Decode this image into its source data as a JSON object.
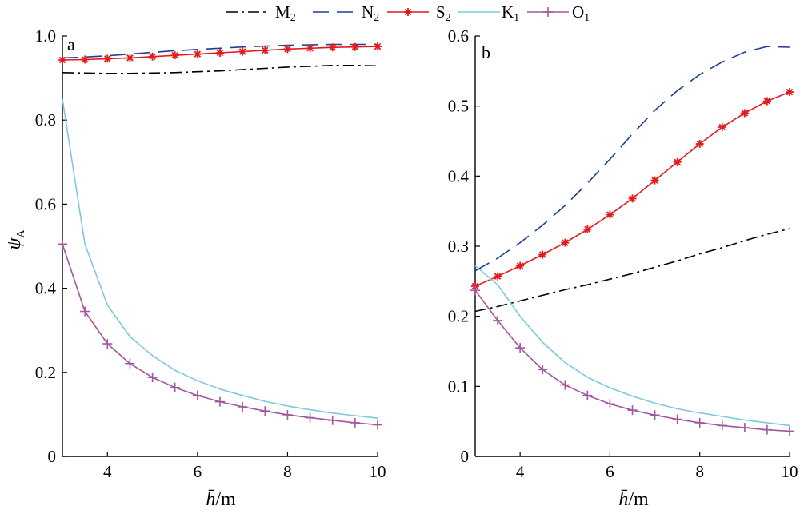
{
  "legend": {
    "items": [
      {
        "key": "M2",
        "base": "M",
        "sub": "2",
        "color": "#000000",
        "dash": "14 5 3 5",
        "marker": "none"
      },
      {
        "key": "N2",
        "base": "N",
        "sub": "2",
        "color": "#1f3f8f",
        "dash": "20 10",
        "marker": "none"
      },
      {
        "key": "S2",
        "base": "S",
        "sub": "2",
        "color": "#e31a1c",
        "dash": "",
        "marker": "asterisk"
      },
      {
        "key": "K1",
        "base": "K",
        "sub": "1",
        "color": "#7ec8dd",
        "dash": "",
        "marker": "none"
      },
      {
        "key": "O1",
        "base": "O",
        "sub": "1",
        "color": "#a2569e",
        "dash": "",
        "marker": "plus"
      }
    ]
  },
  "chart_data": [
    {
      "type": "line",
      "panel_label": "a",
      "ylabel": "ψA",
      "xlabel": "h̄/m",
      "xlim": [
        3,
        10
      ],
      "ylim": [
        0,
        1.0
      ],
      "xticks": [
        "4",
        "6",
        "8",
        "10"
      ],
      "yticks": [
        "0",
        "0.2",
        "0.4",
        "0.6",
        "0.8",
        "1.0"
      ],
      "x": [
        3,
        3.5,
        4,
        4.5,
        5,
        5.5,
        6,
        6.5,
        7,
        7.5,
        8,
        8.5,
        9,
        9.5,
        10
      ],
      "series": [
        {
          "name": "M2",
          "values": [
            0.913,
            0.912,
            0.911,
            0.911,
            0.912,
            0.913,
            0.915,
            0.917,
            0.92,
            0.923,
            0.926,
            0.928,
            0.93,
            0.93,
            0.929
          ]
        },
        {
          "name": "N2",
          "values": [
            0.948,
            0.95,
            0.953,
            0.957,
            0.961,
            0.965,
            0.968,
            0.971,
            0.974,
            0.976,
            0.978,
            0.979,
            0.98,
            0.98,
            0.98
          ]
        },
        {
          "name": "S2",
          "values": [
            0.943,
            0.944,
            0.946,
            0.948,
            0.951,
            0.954,
            0.957,
            0.96,
            0.963,
            0.966,
            0.969,
            0.971,
            0.973,
            0.974,
            0.975
          ]
        },
        {
          "name": "K1",
          "values": [
            0.85,
            0.505,
            0.36,
            0.285,
            0.24,
            0.205,
            0.18,
            0.16,
            0.145,
            0.131,
            0.12,
            0.111,
            0.103,
            0.097,
            0.091
          ]
        },
        {
          "name": "O1",
          "values": [
            0.505,
            0.345,
            0.268,
            0.221,
            0.188,
            0.164,
            0.145,
            0.13,
            0.118,
            0.108,
            0.099,
            0.092,
            0.086,
            0.08,
            0.075
          ]
        }
      ]
    },
    {
      "type": "line",
      "panel_label": "b",
      "ylabel": "",
      "xlabel": "h̄/m",
      "xlim": [
        3,
        10
      ],
      "ylim": [
        0,
        0.6
      ],
      "xticks": [
        "4",
        "6",
        "8",
        "10"
      ],
      "yticks": [
        "0",
        "0.1",
        "0.2",
        "0.3",
        "0.4",
        "0.5",
        "0.6"
      ],
      "x": [
        3,
        3.5,
        4,
        4.5,
        5,
        5.5,
        6,
        6.5,
        7,
        7.5,
        8,
        8.5,
        9,
        9.5,
        10
      ],
      "series": [
        {
          "name": "M2",
          "values": [
            0.207,
            0.214,
            0.222,
            0.23,
            0.238,
            0.245,
            0.253,
            0.261,
            0.27,
            0.279,
            0.289,
            0.298,
            0.308,
            0.317,
            0.325
          ]
        },
        {
          "name": "N2",
          "values": [
            0.265,
            0.283,
            0.305,
            0.33,
            0.358,
            0.39,
            0.424,
            0.46,
            0.494,
            0.522,
            0.545,
            0.563,
            0.577,
            0.585,
            0.584
          ]
        },
        {
          "name": "S2",
          "values": [
            0.243,
            0.257,
            0.272,
            0.288,
            0.305,
            0.324,
            0.345,
            0.368,
            0.394,
            0.42,
            0.446,
            0.47,
            0.49,
            0.507,
            0.52
          ]
        },
        {
          "name": "K1",
          "values": [
            0.272,
            0.245,
            0.2,
            0.163,
            0.134,
            0.113,
            0.098,
            0.086,
            0.076,
            0.068,
            0.062,
            0.057,
            0.052,
            0.048,
            0.044
          ]
        },
        {
          "name": "O1",
          "values": [
            0.237,
            0.194,
            0.155,
            0.124,
            0.102,
            0.087,
            0.075,
            0.066,
            0.059,
            0.053,
            0.048,
            0.044,
            0.041,
            0.038,
            0.036
          ]
        }
      ]
    }
  ]
}
